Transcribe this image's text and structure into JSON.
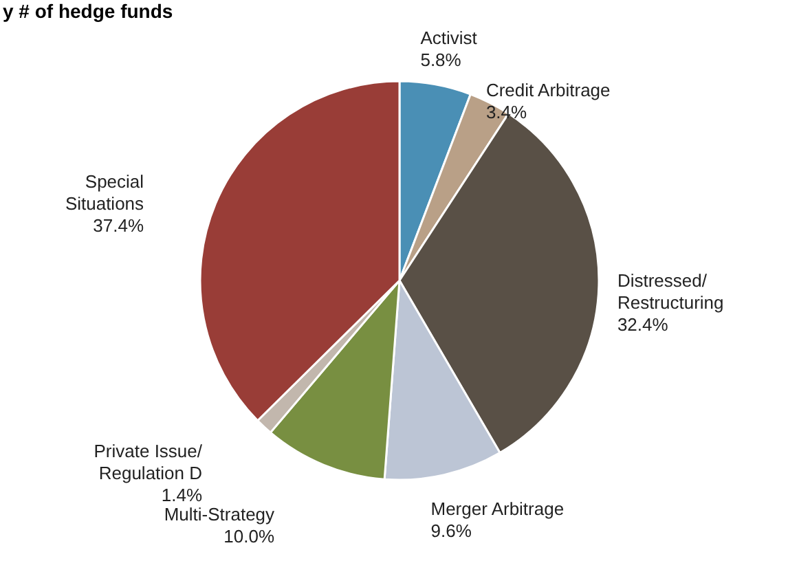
{
  "chart_data": {
    "type": "pie",
    "title": "y # of hedge funds",
    "categories": [
      "Activist",
      "Credit Arbitrage",
      "Distressed/Restructuring",
      "Merger Arbitrage",
      "Multi-Strategy",
      "Private Issue/Regulation D",
      "Special Situations"
    ],
    "values": [
      5.8,
      3.4,
      32.4,
      9.6,
      10.0,
      1.4,
      37.4
    ],
    "value_labels": [
      "5.8%",
      "3.4%",
      "32.4%",
      "9.6%",
      "10.0%",
      "1.4%",
      "37.4%"
    ],
    "colors": [
      "#4a8fb5",
      "#b9a087",
      "#595046",
      "#bcc5d5",
      "#788f41",
      "#c2b7ad",
      "#993d37"
    ]
  }
}
